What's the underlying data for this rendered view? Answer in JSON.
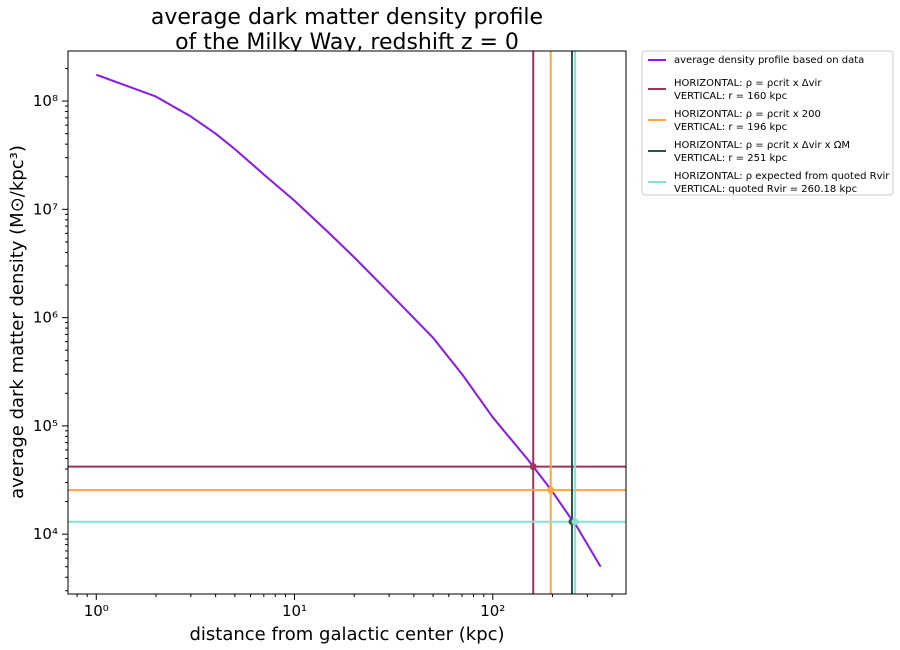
{
  "chart_data": {
    "type": "line",
    "title_lines": [
      "average dark matter density profile",
      "of the Milky Way, redshift z = 0"
    ],
    "xlabel": "distance from galactic center (kpc)",
    "ylabel": "average dark matter density (M⊙/kpc³)",
    "x_scale": "log",
    "y_scale": "log",
    "xlim": [
      0.72,
      470
    ],
    "ylim": [
      2800,
      290000000
    ],
    "x_ticks": [
      {
        "value": 1,
        "label": "10⁰"
      },
      {
        "value": 10,
        "label": "10¹"
      },
      {
        "value": 100,
        "label": "10²"
      }
    ],
    "y_ticks": [
      {
        "value": 10000,
        "label": "10⁴"
      },
      {
        "value": 100000,
        "label": "10⁵"
      },
      {
        "value": 1000000,
        "label": "10⁶"
      },
      {
        "value": 10000000,
        "label": "10⁷"
      },
      {
        "value": 100000000,
        "label": "10⁸"
      }
    ],
    "grid": false,
    "legend_position": "outside right, top",
    "series": [
      {
        "name": "average density profile based on data",
        "color": "#8a19e6",
        "x": [
          1,
          2,
          3,
          4,
          5,
          7,
          10,
          15,
          20,
          30,
          50,
          70,
          100,
          150,
          160,
          196,
          251,
          260.18,
          350
        ],
        "y": [
          175000000,
          110000000,
          72000000,
          50000000,
          36000000,
          21000000,
          12000000,
          6000000,
          3600000,
          1700000,
          650000,
          300000,
          120000,
          49000,
          42000,
          26000,
          13500,
          12500,
          5000
        ]
      }
    ],
    "reference_lines": [
      {
        "color": "#a0325c",
        "h": 42000,
        "v": 160,
        "legend_line1": "HORIZONTAL: ρ = ρcrit x Δvir",
        "legend_line2": "VERTICAL: r = 160 kpc"
      },
      {
        "color": "#f9a63b",
        "h": 25500,
        "v": 196,
        "legend_line1": "HORIZONTAL: ρ = ρcrit x 200",
        "legend_line2": "VERTICAL: r = 196 kpc"
      },
      {
        "color": "#2f5245",
        "h": null,
        "v": 251,
        "legend_line1": "HORIZONTAL: ρ = ρcrit x Δvir x ΩM",
        "legend_line2": "VERTICAL: r = 251 kpc"
      },
      {
        "color": "#86e0d4",
        "h": 13000,
        "v": 260.18,
        "legend_line1": "HORIZONTAL: ρ expected from quoted Rvir",
        "legend_line2": "VERTICAL: quoted Rvir = 260.18 kpc"
      }
    ],
    "markers": [
      {
        "x": 160,
        "y": 42000,
        "color": "#a0325c"
      },
      {
        "x": 196,
        "y": 25500,
        "color": "#f9a63b"
      },
      {
        "x": 251,
        "y": 13000,
        "color": "#2f5245"
      },
      {
        "x": 260.18,
        "y": 13000,
        "color": "#86e0d4"
      }
    ]
  }
}
